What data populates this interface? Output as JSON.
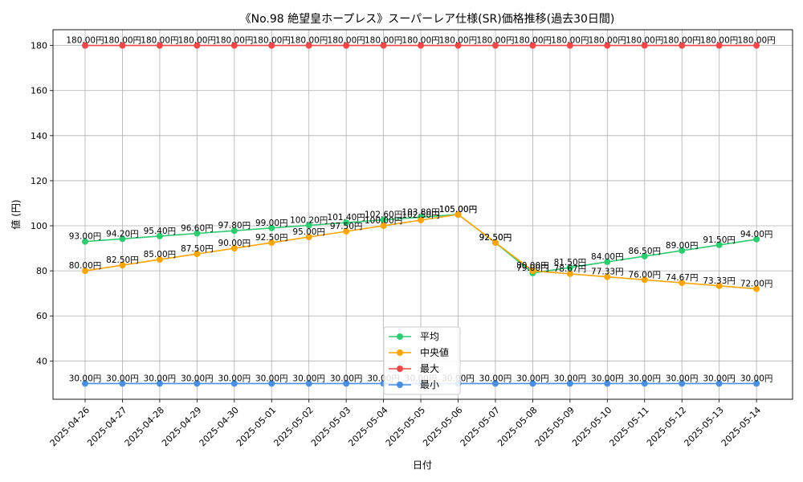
{
  "chart_data": {
    "type": "line",
    "title": "《No.98 絶望皇ホープレス》スーパーレア仕様(SR)価格推移(過去30日間)",
    "xlabel": "日付",
    "ylabel": "値 (円)",
    "ylim": [
      23,
      187
    ],
    "yticks": [
      40,
      60,
      80,
      100,
      120,
      140,
      160,
      180
    ],
    "grid": true,
    "legend_position": "bottom-center",
    "categories": [
      "2025-04-26",
      "2025-04-27",
      "2025-04-28",
      "2025-04-29",
      "2025-04-30",
      "2025-05-01",
      "2025-05-02",
      "2025-05-03",
      "2025-05-04",
      "2025-05-05",
      "2025-05-06",
      "2025-05-07",
      "2025-05-08",
      "2025-05-09",
      "2025-05-10",
      "2025-05-11",
      "2025-05-12",
      "2025-05-13",
      "2025-05-14"
    ],
    "series": [
      {
        "name": "平均",
        "color": "#2ecc71",
        "values": [
          93.0,
          94.2,
          95.4,
          96.6,
          97.8,
          99.0,
          100.2,
          101.4,
          102.6,
          103.8,
          105.0,
          92.5,
          79.0,
          81.5,
          84.0,
          86.5,
          89.0,
          91.5,
          94.0
        ],
        "labels": [
          "93.00円",
          "94.20円",
          "95.40円",
          "96.60円",
          "97.80円",
          "99.00円",
          "100.20円",
          "101.40円",
          "102.60円",
          "103.80円",
          "105.00円",
          "92.50円",
          "79.00円",
          "81.50円",
          "84.00円",
          "86.50円",
          "89.00円",
          "91.50円",
          "94.00円"
        ]
      },
      {
        "name": "中央値",
        "color": "#ffa500",
        "values": [
          80.0,
          82.5,
          85.0,
          87.5,
          90.0,
          92.5,
          95.0,
          97.5,
          100.0,
          102.5,
          105.0,
          92.5,
          80.0,
          78.67,
          77.33,
          76.0,
          74.67,
          73.33,
          72.0
        ],
        "labels": [
          "80.00円",
          "82.50円",
          "85.00円",
          "87.50円",
          "90.00円",
          "92.50円",
          "95.00円",
          "97.50円",
          "100.00円",
          "102.50円",
          "105.00円",
          "92.50円",
          "80.00円",
          "78.67円",
          "77.33円",
          "76.00円",
          "74.67円",
          "73.33円",
          "72.00円"
        ]
      },
      {
        "name": "最大",
        "color": "#f04848",
        "values": [
          180,
          180,
          180,
          180,
          180,
          180,
          180,
          180,
          180,
          180,
          180,
          180,
          180,
          180,
          180,
          180,
          180,
          180,
          180
        ],
        "labels": [
          "180.00円",
          "180.00円",
          "180.00円",
          "180.00円",
          "180.00円",
          "180.00円",
          "180.00円",
          "180.00円",
          "180.00円",
          "180.00円",
          "180.00円",
          "180.00円",
          "180.00円",
          "180.00円",
          "180.00円",
          "180.00円",
          "180.00円",
          "180.00円",
          "180.00円"
        ]
      },
      {
        "name": "最小",
        "color": "#4a90e2",
        "values": [
          30,
          30,
          30,
          30,
          30,
          30,
          30,
          30,
          30,
          30,
          30,
          30,
          30,
          30,
          30,
          30,
          30,
          30,
          30
        ],
        "labels": [
          "30.00円",
          "30.00円",
          "30.00円",
          "30.00円",
          "30.00円",
          "30.00円",
          "30.00円",
          "30.00円",
          "30.00円",
          "30.00円",
          "30.00円",
          "30.00円",
          "30.00円",
          "30.00円",
          "30.00円",
          "30.00円",
          "30.00円",
          "30.00円",
          "30.00円"
        ]
      }
    ]
  }
}
